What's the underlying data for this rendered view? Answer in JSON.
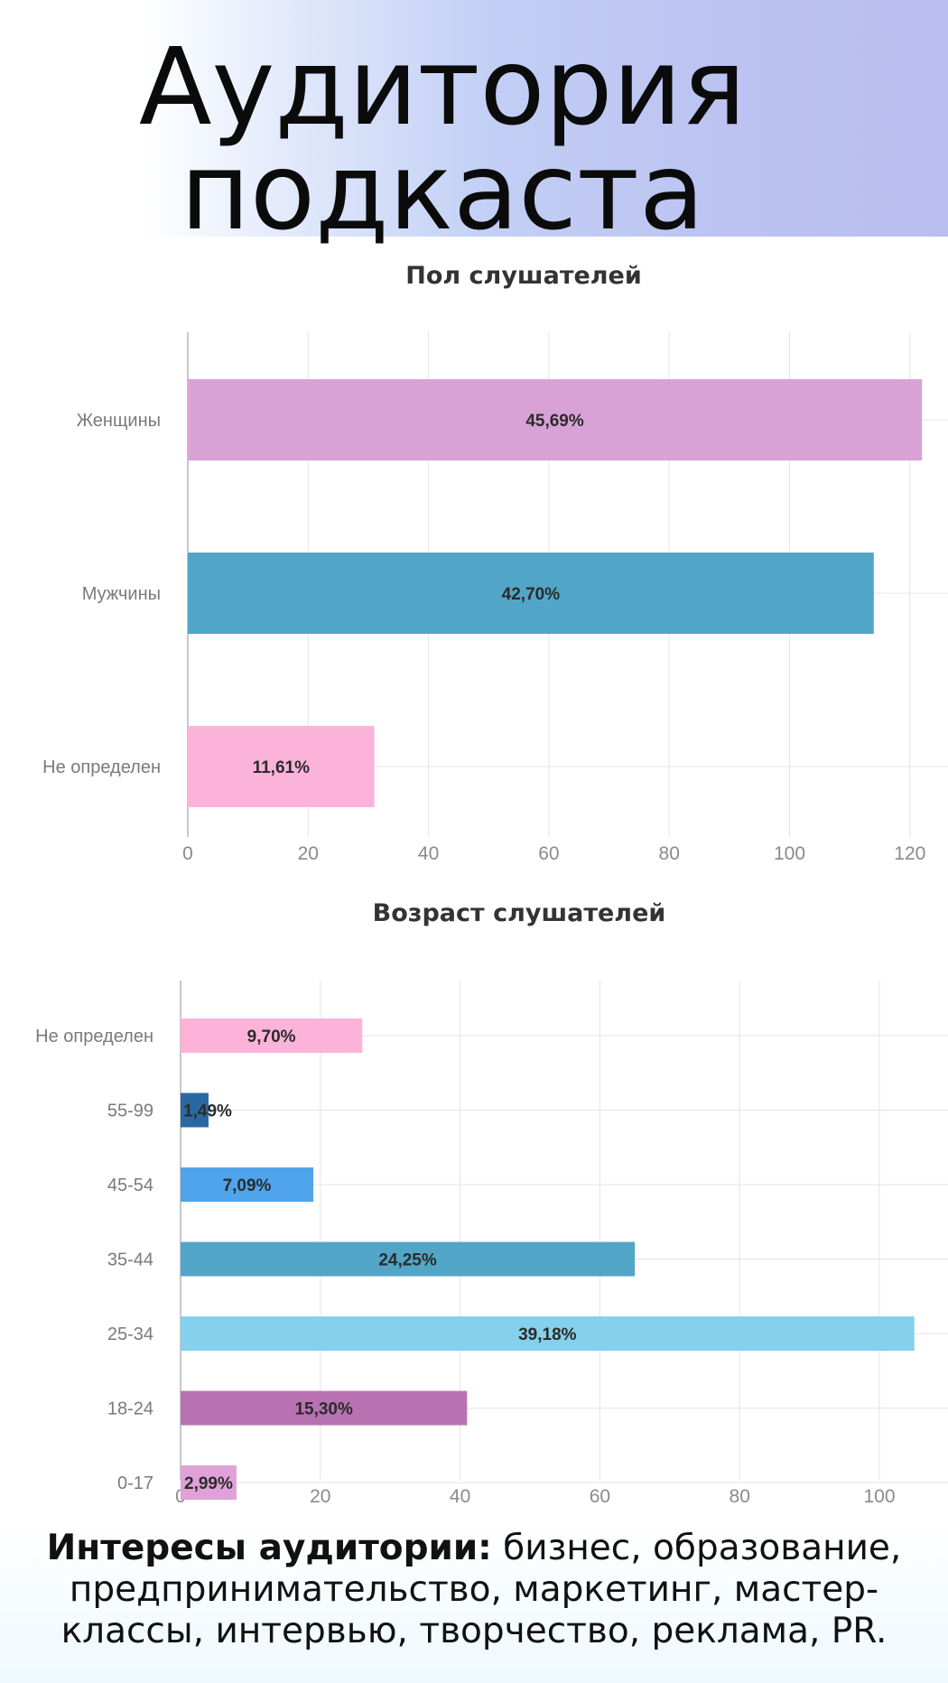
{
  "title_line1": "Аудитория",
  "title_line2": "подкаста",
  "chart_data": [
    {
      "type": "bar",
      "orientation": "horizontal",
      "title": "Пол слушателей",
      "categories": [
        "Женщины",
        "Мужчины",
        "Не определен"
      ],
      "values": [
        122,
        114,
        31
      ],
      "labels": [
        "45,69%",
        "42,70%",
        "11,61%"
      ],
      "colors": [
        "#d9a2d6",
        "#51a6c7",
        "#fbb3da"
      ],
      "xlim": [
        0,
        120
      ],
      "xticks": [
        "0",
        "20",
        "40",
        "60",
        "80",
        "100",
        "120"
      ],
      "grid": true
    },
    {
      "type": "bar",
      "orientation": "horizontal",
      "title": "Возраст слушателей",
      "categories": [
        "Не определен",
        "55-99",
        "45-54",
        "35-44",
        "25-34",
        "18-24",
        "0-17"
      ],
      "values": [
        26,
        4,
        19,
        65,
        105,
        41,
        8
      ],
      "labels": [
        "9,70%",
        "1,49%",
        "7,09%",
        "24,25%",
        "39,18%",
        "15,30%",
        "2,99%"
      ],
      "colors": [
        "#fbb3da",
        "#2a68a1",
        "#4fa4ec",
        "#51a6c7",
        "#85d0ec",
        "#b872b2",
        "#dfa1d8"
      ],
      "xlim": [
        0,
        100
      ],
      "xticks": [
        "0",
        "20",
        "40",
        "60",
        "80",
        "100"
      ],
      "grid": true
    }
  ],
  "footer": {
    "bold": "Интересы аудитории:",
    "text": " бизнес, образование, предпринимательство,  маркетинг, мастер-классы, интервью, творчество, реклама, PR."
  }
}
